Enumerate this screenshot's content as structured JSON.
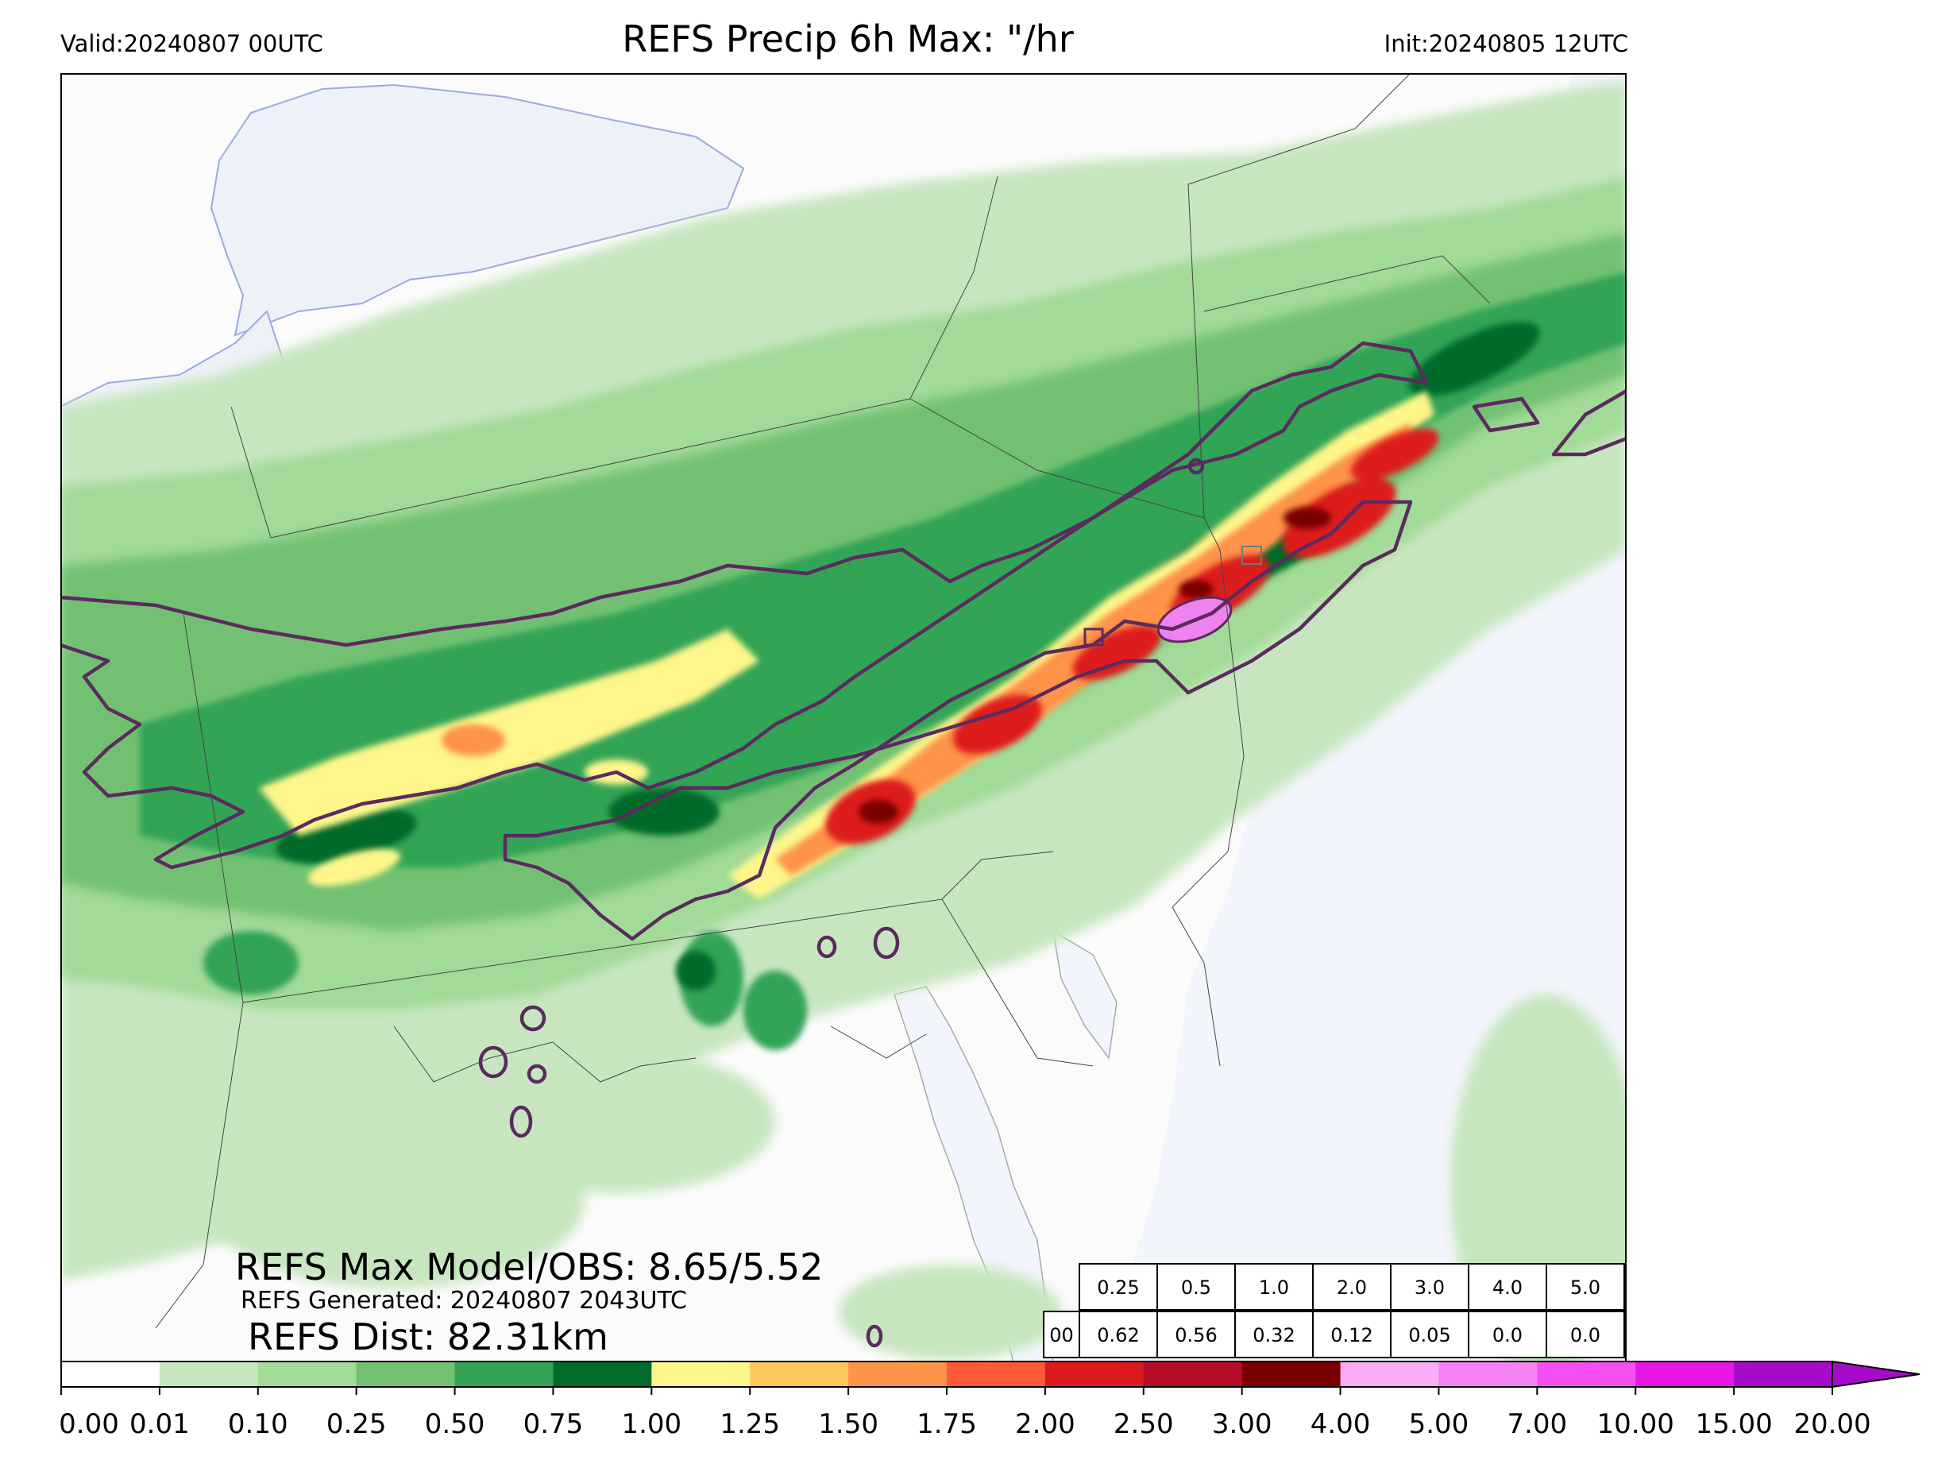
{
  "header": {
    "valid": "Valid:20240807 00UTC",
    "title": "REFS Precip 6h Max: \"/hr",
    "init": "Init:20240805 12UTC"
  },
  "stats": {
    "max_model_obs": "REFS Max Model/OBS: 8.65/5.52",
    "generated": "REFS Generated: 20240807 2043UTC",
    "dist": "REFS Dist: 82.31km"
  },
  "threshold_table": {
    "row_label": "00",
    "thresholds": [
      "0.25",
      "0.5",
      "1.0",
      "2.0",
      "3.0",
      "4.0",
      "5.0"
    ],
    "values": [
      "0.62",
      "0.56",
      "0.32",
      "0.12",
      "0.05",
      "0.0",
      "0.0"
    ]
  },
  "colorbar": {
    "ticks": [
      "0.00",
      "0.01",
      "0.10",
      "0.25",
      "0.50",
      "0.75",
      "1.00",
      "1.25",
      "1.50",
      "1.75",
      "2.00",
      "2.50",
      "3.00",
      "4.00",
      "5.00",
      "7.00",
      "10.00",
      "15.00",
      "20.00"
    ],
    "colors": [
      "#ffffff",
      "#c7e6c0",
      "#a2da97",
      "#72c173",
      "#33a457",
      "#006b2a",
      "#fef68b",
      "#fdc85e",
      "#fe934a",
      "#fe5a3a",
      "#dd1b1f",
      "#b50d29",
      "#7a0000",
      "#f9adf7",
      "#f682f4",
      "#f54ff2",
      "#e617e6",
      "#a50bc8"
    ]
  },
  "map_colors": {
    "land": "#fbfbfb",
    "water": "#f2f5fb",
    "lake_edge": "#9fa8de",
    "obs_contour": "#5b2a5e",
    "max_marker": "#ee82ee"
  }
}
